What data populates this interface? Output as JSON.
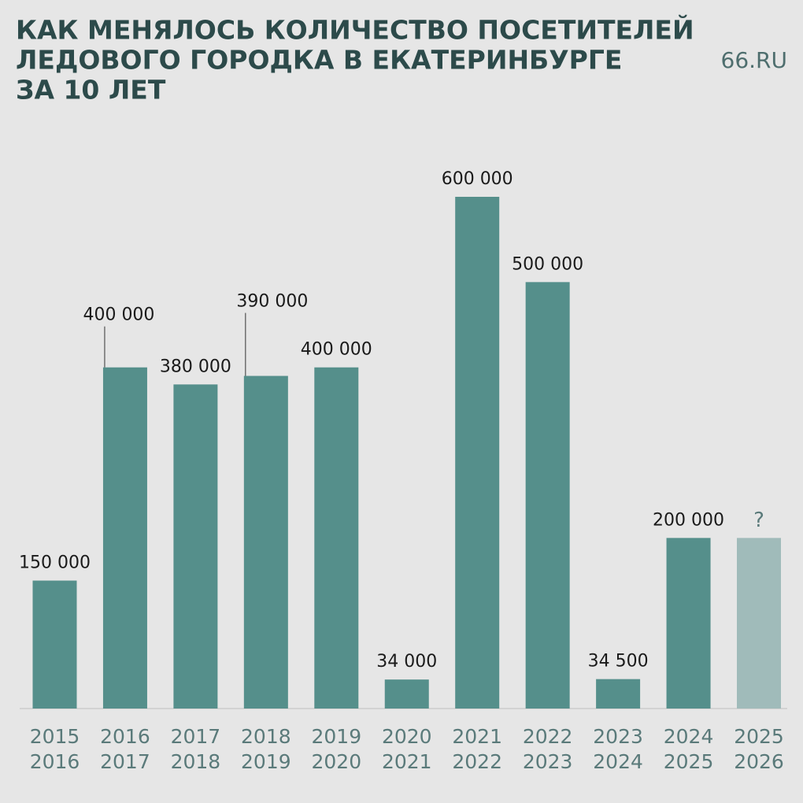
{
  "chart_data": {
    "type": "bar",
    "title": [
      "КАК МЕНЯЛОСЬ КОЛИЧЕСТВО ПОСЕТИТЕЛЕЙ",
      "ЛЕДОВОГО ГОРОДКА В ЕКАТЕРИНБУРГЕ",
      "ЗА 10 ЛЕТ"
    ],
    "source": "66.RU",
    "categories": [
      [
        "2015",
        "2016"
      ],
      [
        "2016",
        "2017"
      ],
      [
        "2017",
        "2018"
      ],
      [
        "2018",
        "2019"
      ],
      [
        "2019",
        "2020"
      ],
      [
        "2020",
        "2021"
      ],
      [
        "2021",
        "2022"
      ],
      [
        "2022",
        "2023"
      ],
      [
        "2023",
        "2024"
      ],
      [
        "2024",
        "2025"
      ],
      [
        "2025",
        "2026"
      ]
    ],
    "values": [
      150000,
      400000,
      380000,
      390000,
      400000,
      34000,
      600000,
      500000,
      34500,
      200000,
      200000
    ],
    "value_labels": [
      "150 000",
      "400 000",
      "380 000",
      "390 000",
      "400 000",
      "34 000",
      "600 000",
      "500 000",
      "34 500",
      "200 000",
      "?"
    ],
    "colors": [
      "#558f8b",
      "#558f8b",
      "#558f8b",
      "#558f8b",
      "#558f8b",
      "#558f8b",
      "#558f8b",
      "#558f8b",
      "#558f8b",
      "#558f8b",
      "#a0bbba"
    ],
    "ylim": [
      0,
      600000
    ]
  }
}
